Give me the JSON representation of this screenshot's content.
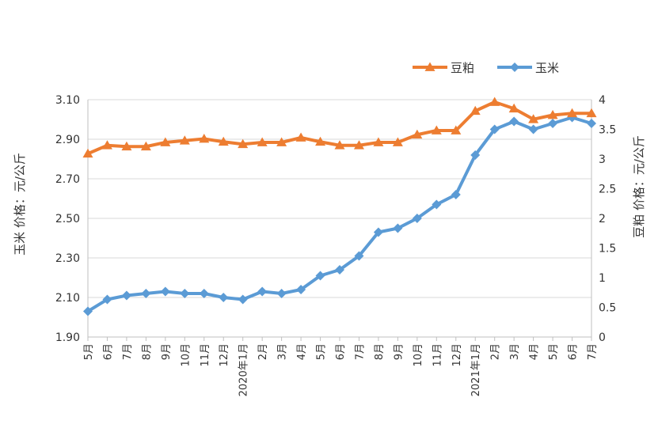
{
  "chart_data": {
    "type": "line",
    "categories": [
      "5月",
      "6月",
      "7月",
      "8月",
      "9月",
      "10月",
      "11月",
      "12月",
      "2020年1月",
      "2月",
      "3月",
      "4月",
      "5月",
      "6月",
      "7月",
      "8月",
      "9月",
      "10月",
      "11月",
      "12月",
      "2021年1月",
      "2月",
      "3月",
      "4月",
      "5月",
      "6月",
      "7月"
    ],
    "series": [
      {
        "name": "豆粕",
        "axis": "right",
        "color": "#ED7D31",
        "marker": "triangle",
        "values": [
          3.09,
          3.23,
          3.21,
          3.21,
          3.28,
          3.31,
          3.34,
          3.29,
          3.25,
          3.28,
          3.28,
          3.36,
          3.29,
          3.23,
          3.23,
          3.28,
          3.28,
          3.41,
          3.48,
          3.48,
          3.81,
          3.96,
          3.85,
          3.67,
          3.74,
          3.77,
          3.77
        ]
      },
      {
        "name": "玉米",
        "axis": "left",
        "color": "#5B9BD5",
        "marker": "diamond",
        "values": [
          2.03,
          2.09,
          2.11,
          2.12,
          2.13,
          2.12,
          2.12,
          2.1,
          2.09,
          2.13,
          2.12,
          2.14,
          2.21,
          2.24,
          2.31,
          2.43,
          2.45,
          2.5,
          2.57,
          2.62,
          2.82,
          2.95,
          2.99,
          2.95,
          2.98,
          3.01,
          2.98
        ]
      }
    ],
    "left_axis": {
      "label": "玉米    价格：元/公斤",
      "ylim": [
        1.9,
        3.1
      ],
      "ticks": [
        "1.90",
        "2.10",
        "2.30",
        "2.50",
        "2.70",
        "2.90",
        "3.10"
      ]
    },
    "right_axis": {
      "label": "豆粕    价格：元/公斤",
      "ylim": [
        0,
        4
      ],
      "ticks": [
        "0",
        "0.5",
        "1",
        "1.5",
        "2",
        "2.5",
        "3",
        "3.5",
        "4"
      ]
    },
    "legend": {
      "position": "top-right",
      "items": [
        "豆粕",
        "玉米"
      ]
    },
    "grid": true
  }
}
